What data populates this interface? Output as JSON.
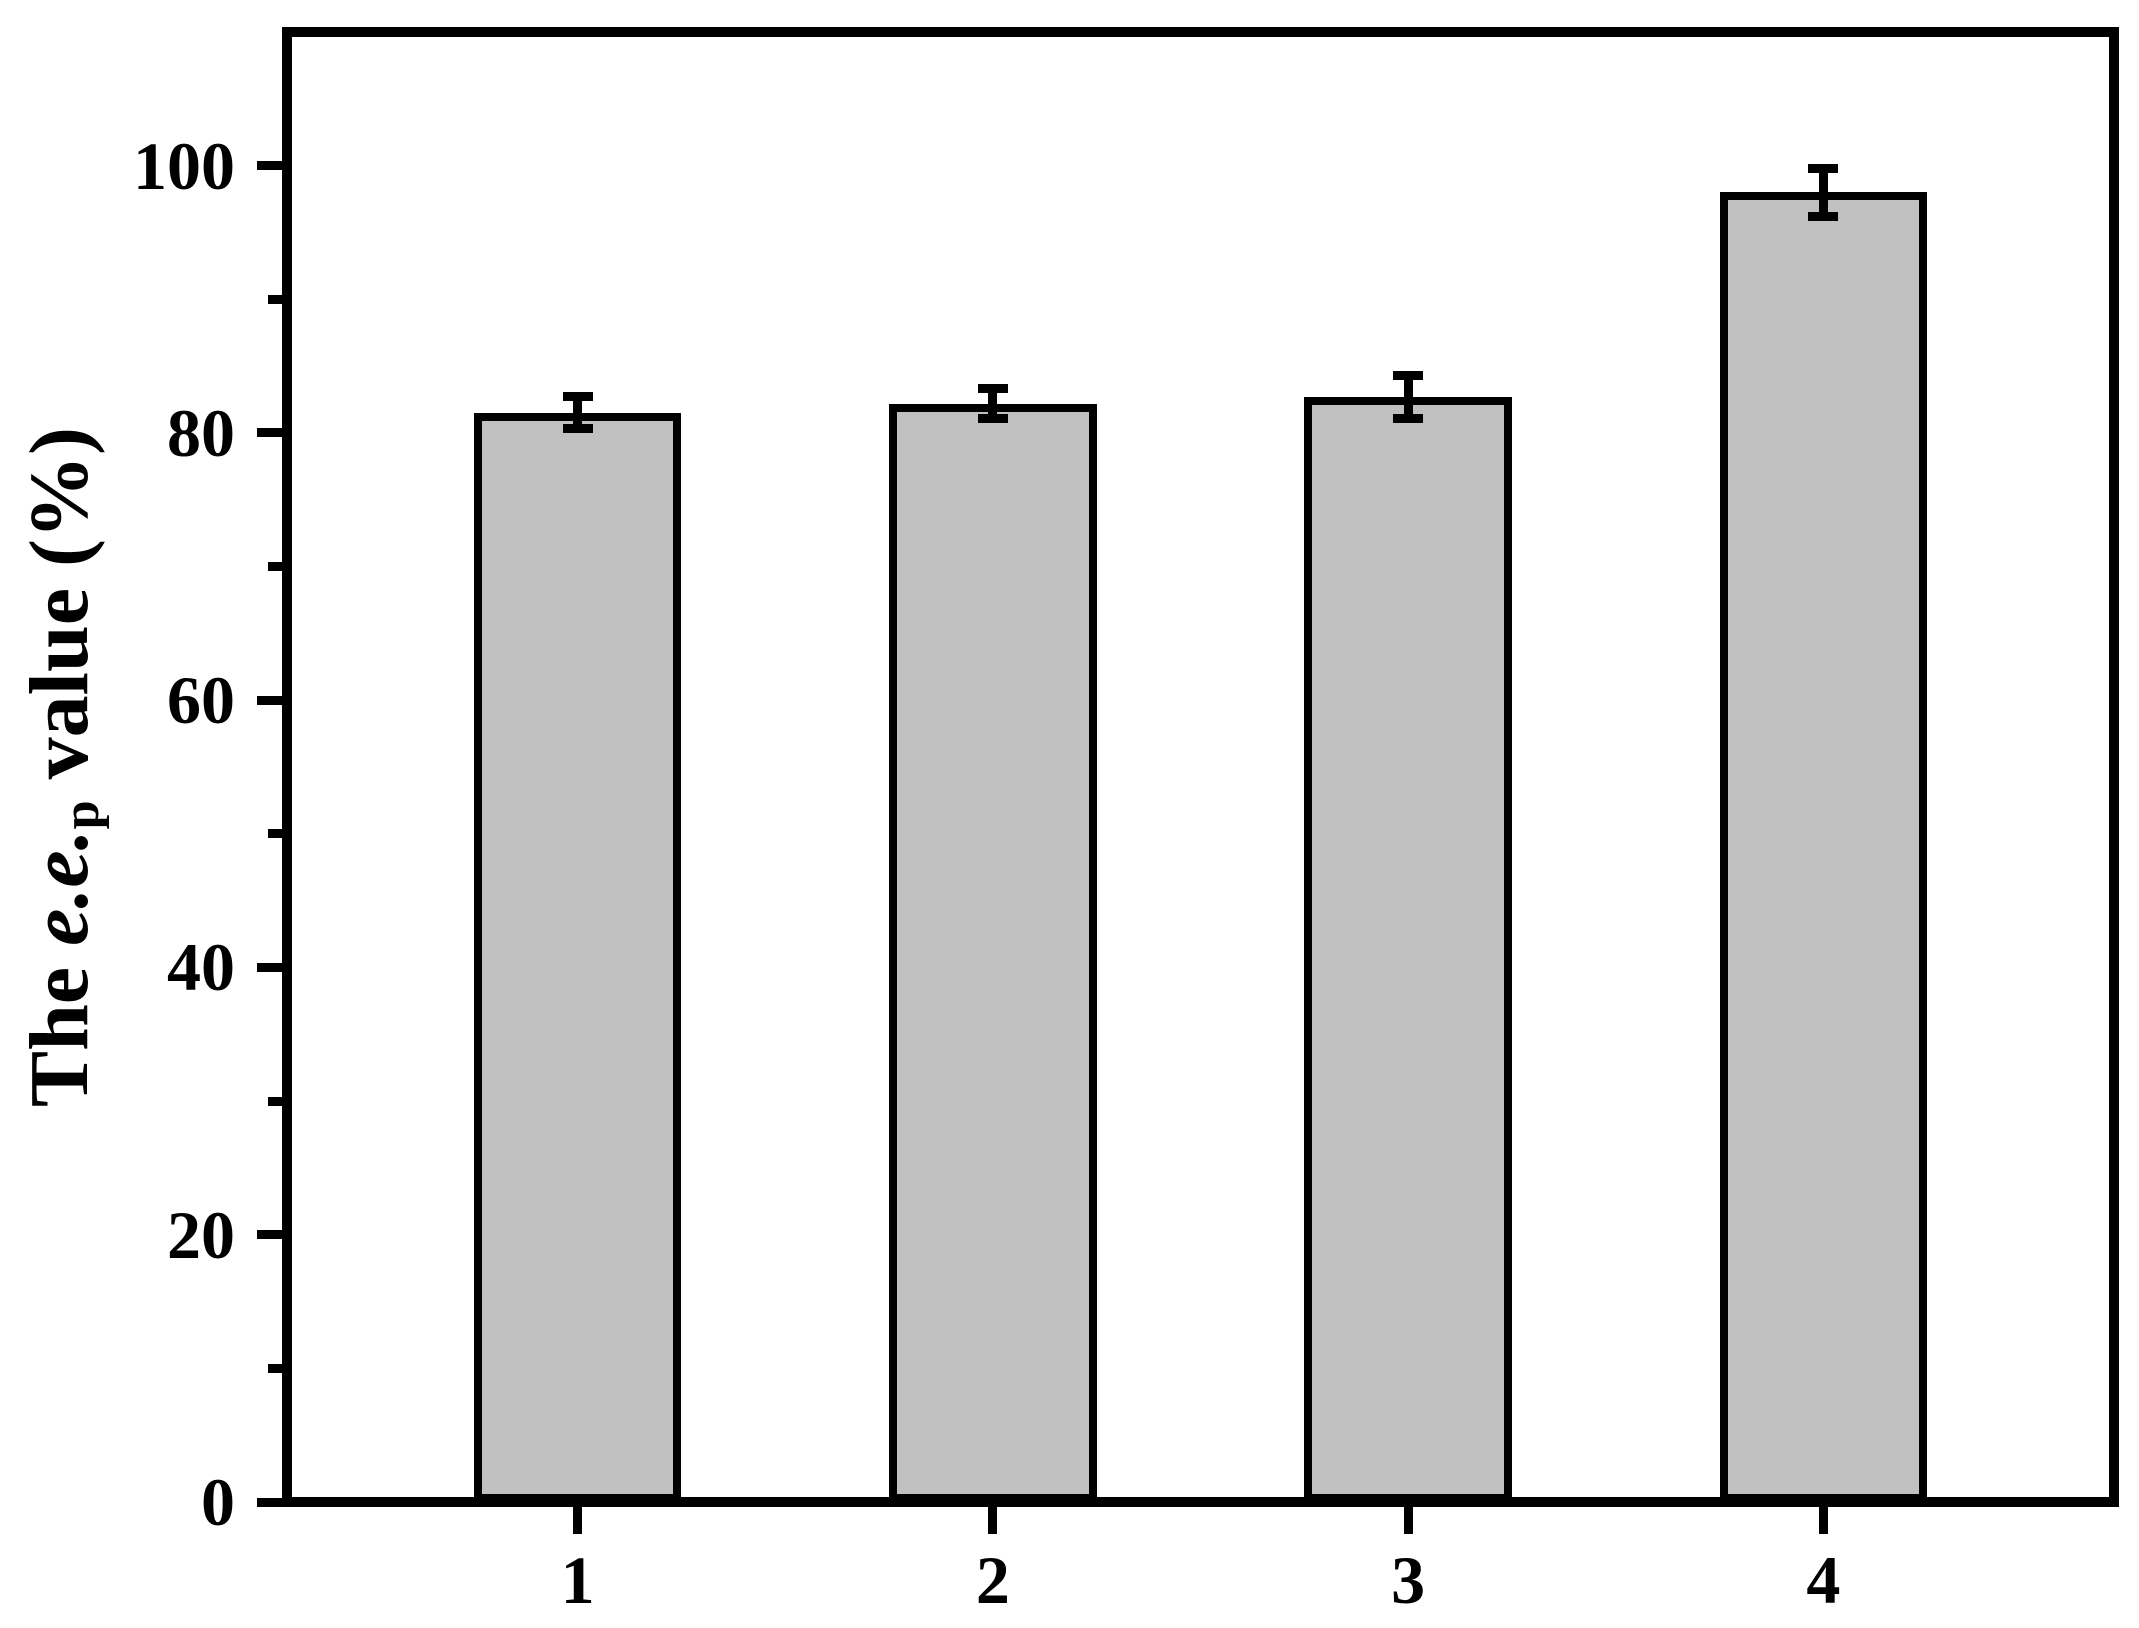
{
  "figure": {
    "background": "#ffffff"
  },
  "chart_data": {
    "type": "bar",
    "categories": [
      "1",
      "2",
      "3",
      "4"
    ],
    "values": [
      81.5,
      82.2,
      82.7,
      98.0
    ],
    "errors": [
      1.2,
      1.1,
      1.6,
      1.8
    ],
    "title": "",
    "xlabel": "",
    "ylabel": "The e.e.p value (%)",
    "ylabel_rich": {
      "prefix": "The ",
      "italic": "e.e.",
      "subscript": "p",
      "suffix": " value (%)"
    },
    "ylim": [
      0,
      110
    ],
    "yticks_major": [
      0,
      20,
      40,
      60,
      80,
      100
    ],
    "yticks_minor": [
      10,
      30,
      50,
      70,
      90
    ],
    "xlim": [
      0.3,
      4.7
    ],
    "bar_width_units": 0.5,
    "grid": false,
    "legend": false,
    "colors": {
      "bar_fill": "#c0c0c0",
      "bar_edge": "#000000",
      "axis": "#000000",
      "text": "#000000"
    }
  }
}
